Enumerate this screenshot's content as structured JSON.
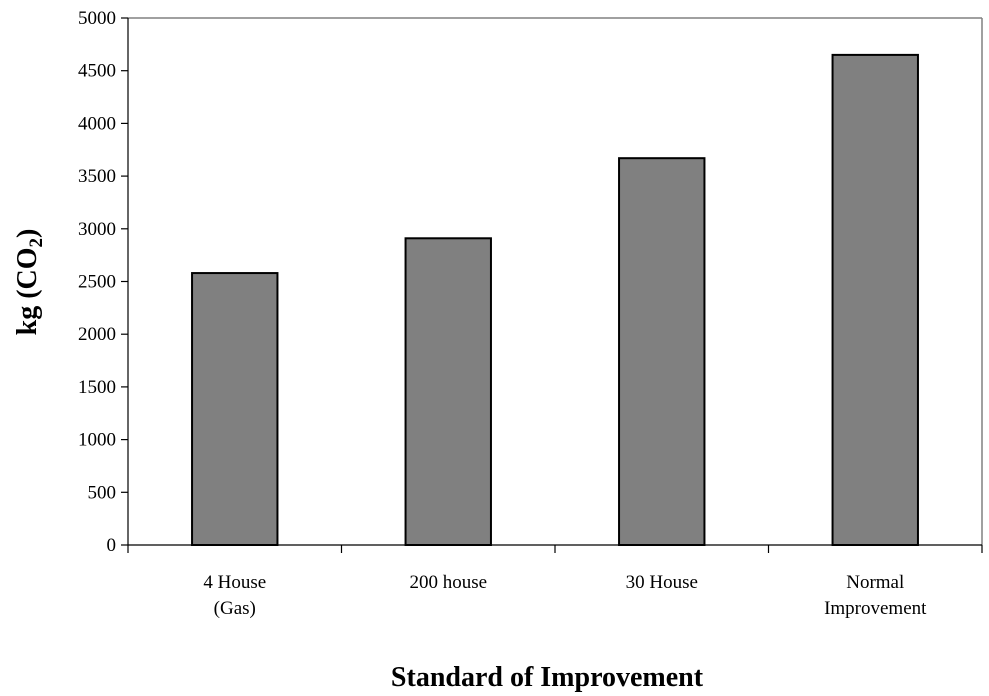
{
  "chart_data": {
    "type": "bar",
    "categories": [
      [
        "4 House",
        "(Gas)"
      ],
      [
        "200 house"
      ],
      [
        "30 House"
      ],
      [
        "Normal",
        "Improvement"
      ]
    ],
    "values": [
      2580,
      2910,
      3670,
      4650
    ],
    "xlabel": "Standard of Improvement",
    "ylabel": {
      "main": "kg (CO",
      "subscript": "2",
      "suffix": ")"
    },
    "ylim": [
      0,
      5000
    ],
    "yticks": [
      0,
      500,
      1000,
      1500,
      2000,
      2500,
      3000,
      3500,
      4000,
      4500,
      5000
    ],
    "grid": false,
    "legend": "none",
    "colors": {
      "bar_fill": "#808080",
      "bar_stroke": "#000000",
      "axis": "#000000",
      "frame": "#808080"
    }
  }
}
